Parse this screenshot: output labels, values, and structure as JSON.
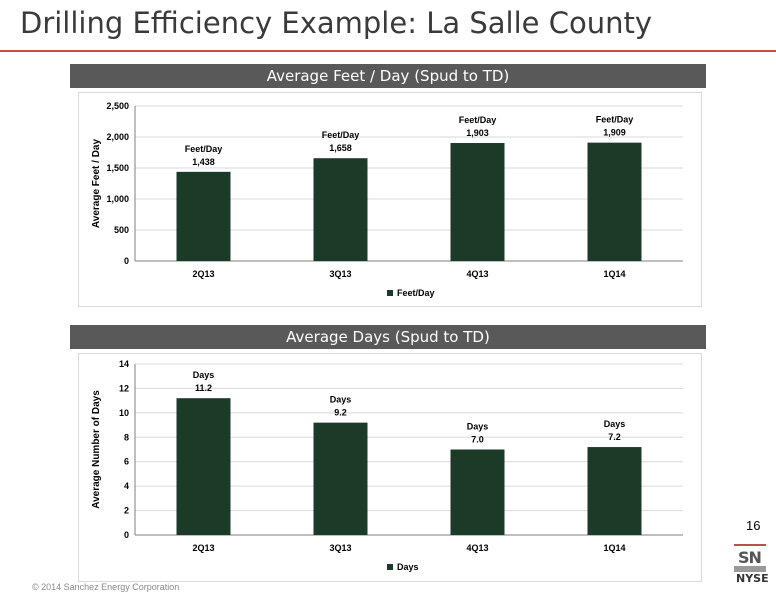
{
  "page": {
    "title": "Drilling Efficiency Example: La Salle County",
    "page_number": "16",
    "copyright": "© 2014 Sanchez Energy Corporation",
    "logo": {
      "top": "SN",
      "bottom": "NYSE"
    }
  },
  "colors": {
    "bar": "#1b3a28",
    "header": "#595959",
    "accent": "#c0504d",
    "grid": "#d9d9d9"
  },
  "chart_data": [
    {
      "type": "bar",
      "title": "Average Feet / Day  (Spud to TD)",
      "ylabel": "Average Feet / Day",
      "categories": [
        "2Q13",
        "3Q13",
        "4Q13",
        "1Q14"
      ],
      "series": [
        {
          "name": "Feet/Day",
          "values": [
            1438,
            1658,
            1903,
            1909
          ]
        }
      ],
      "data_labels": [
        "1,438",
        "1,658",
        "1,903",
        "1,909"
      ],
      "label_prefix": "Feet/Day",
      "ylim": [
        0,
        2500
      ],
      "yticks": [
        "0",
        "500",
        "1,000",
        "1,500",
        "2,000",
        "2,500"
      ],
      "grid": true,
      "legend": "bottom"
    },
    {
      "type": "bar",
      "title": "Average Days  (Spud to TD)",
      "ylabel": "Average Number of Days",
      "categories": [
        "2Q13",
        "3Q13",
        "4Q13",
        "1Q14"
      ],
      "series": [
        {
          "name": "Days",
          "values": [
            11.2,
            9.2,
            7.0,
            7.2
          ]
        }
      ],
      "data_labels": [
        "11.2",
        "9.2",
        "7.0",
        "7.2"
      ],
      "label_prefix": "Days",
      "ylim": [
        0,
        14
      ],
      "yticks": [
        "0",
        "2",
        "4",
        "6",
        "8",
        "10",
        "12",
        "14"
      ],
      "grid": true,
      "legend": "bottom"
    }
  ]
}
